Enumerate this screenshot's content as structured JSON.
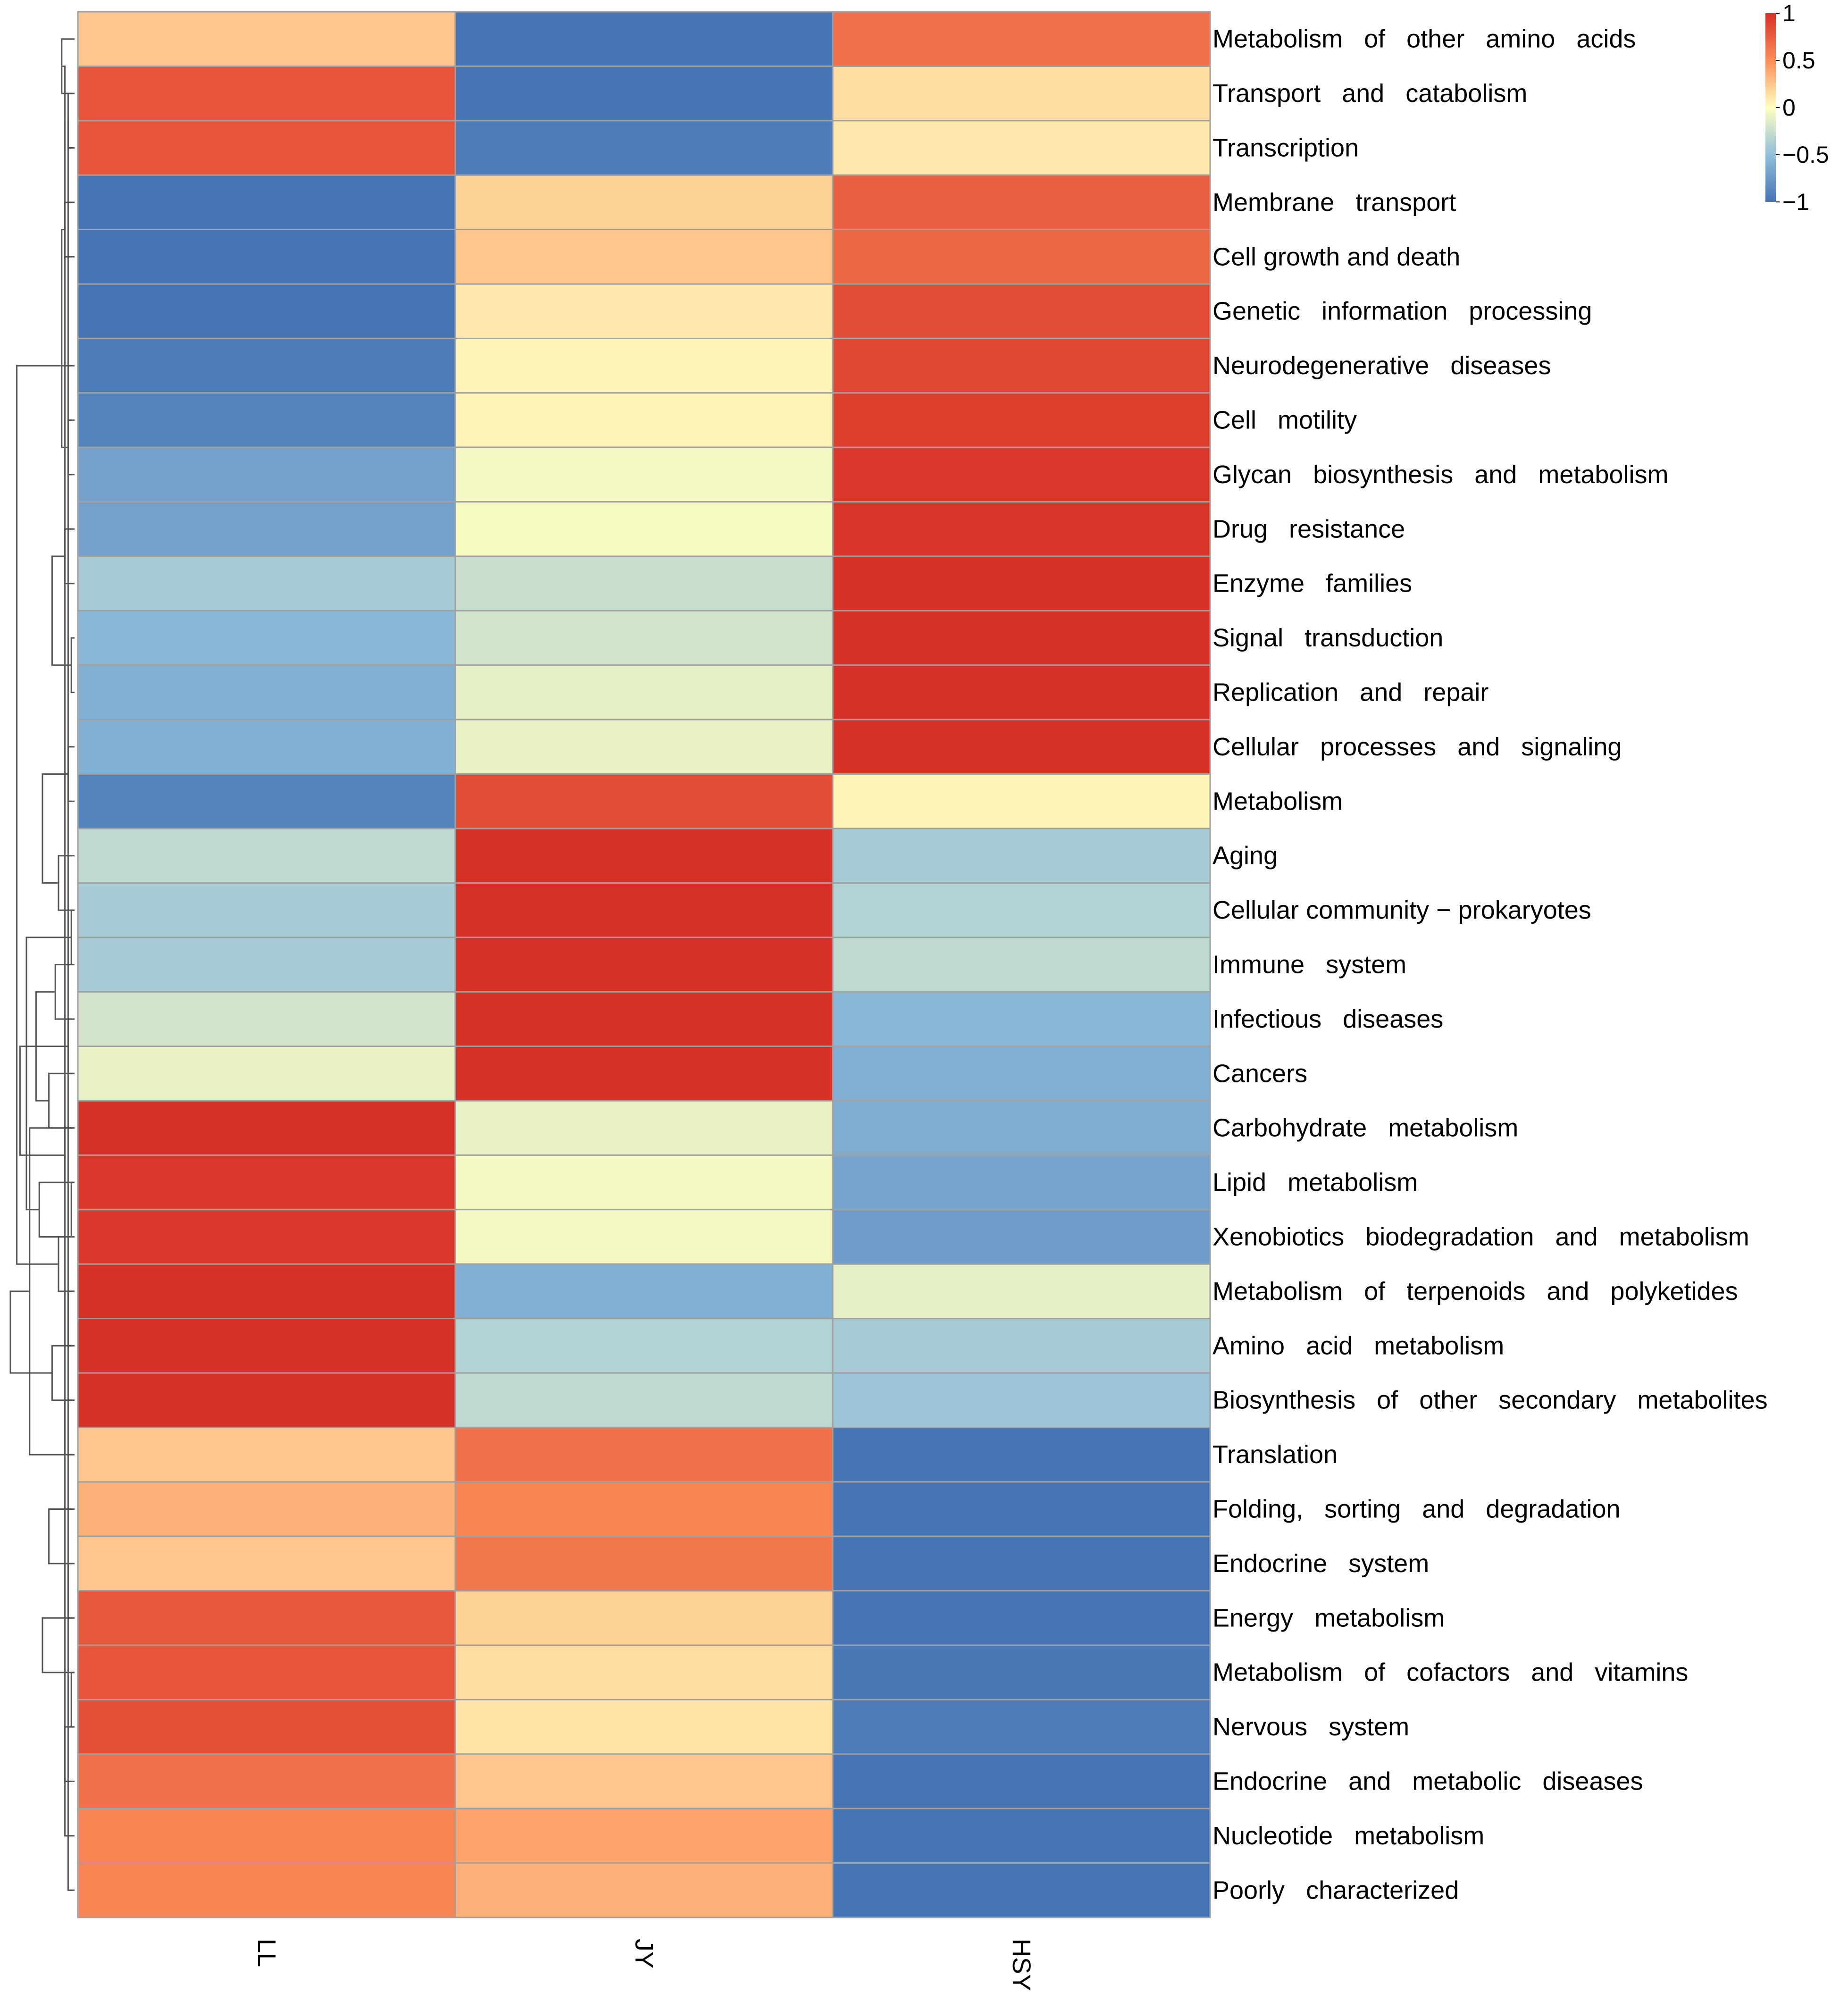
{
  "chart_data": {
    "type": "heatmap",
    "title": "",
    "xlabel": "",
    "ylabel": "",
    "columns": [
      "LL",
      "JY",
      "HSY"
    ],
    "rows": [
      "Metabolism   of   other   amino   acids",
      "Transport   and   catabolism",
      "Transcription",
      "Membrane   transport",
      "Cell growth and death",
      "Genetic   information   processing",
      "Neurodegenerative   diseases",
      "Cell   motility",
      "Glycan   biosynthesis   and   metabolism",
      "Drug   resistance",
      "Enzyme   families",
      "Signal   transduction",
      "Replication   and   repair",
      "Cellular   processes   and   signaling",
      "Metabolism",
      "Aging",
      "Cellular community − prokaryotes",
      "Immune   system",
      "Infectious   diseases",
      "Cancers",
      "Carbohydrate   metabolism",
      "Lipid   metabolism",
      "Xenobiotics   biodegradation   and   metabolism",
      "Metabolism   of   terpenoids   and   polyketides",
      "Amino   acid   metabolism",
      "Biosynthesis   of   other   secondary   metabolites",
      "Translation",
      "Folding,   sorting   and   degradation",
      "Endocrine   system",
      "Energy   metabolism",
      "Metabolism   of   cofactors   and   vitamins",
      "Nervous   system",
      "Endocrine   and   metabolic   diseases",
      "Nucleotide   metabolism",
      "Poorly   characterized"
    ],
    "values": [
      [
        0.25,
        -1.1,
        0.65
      ],
      [
        0.8,
        -1.0,
        0.15
      ],
      [
        0.8,
        -0.95,
        0.1
      ],
      [
        -1.05,
        0.2,
        0.75
      ],
      [
        -1.05,
        0.25,
        0.7
      ],
      [
        -1.0,
        0.1,
        0.85
      ],
      [
        -0.95,
        0.05,
        0.88
      ],
      [
        -0.9,
        0.05,
        0.92
      ],
      [
        -0.7,
        -0.05,
        0.95
      ],
      [
        -0.7,
        -0.03,
        0.97
      ],
      [
        -0.4,
        -0.25,
        1.05
      ],
      [
        -0.55,
        -0.2,
        1.02
      ],
      [
        -0.6,
        -0.12,
        1.0
      ],
      [
        -0.6,
        -0.1,
        1.0
      ],
      [
        -0.9,
        0.85,
        0.05
      ],
      [
        -0.3,
        1.05,
        -0.4
      ],
      [
        -0.4,
        1.05,
        -0.35
      ],
      [
        -0.4,
        1.05,
        -0.3
      ],
      [
        -0.2,
        1.02,
        -0.55
      ],
      [
        -0.1,
        1.0,
        -0.6
      ],
      [
        1.0,
        -0.1,
        -0.62
      ],
      [
        0.95,
        -0.05,
        -0.68
      ],
      [
        0.95,
        -0.05,
        -0.72
      ],
      [
        1.05,
        -0.6,
        -0.12
      ],
      [
        1.05,
        -0.35,
        -0.4
      ],
      [
        1.05,
        -0.3,
        -0.45
      ],
      [
        0.25,
        0.65,
        -1.1
      ],
      [
        0.35,
        0.55,
        -1.1
      ],
      [
        0.25,
        0.62,
        -1.12
      ],
      [
        0.78,
        0.2,
        -1.0
      ],
      [
        0.8,
        0.15,
        -0.98
      ],
      [
        0.82,
        0.12,
        -0.95
      ],
      [
        0.65,
        0.25,
        -1.05
      ],
      [
        0.55,
        0.4,
        -1.05
      ],
      [
        0.55,
        0.35,
        -1.05
      ]
    ],
    "color_scale": {
      "stops": [
        {
          "value": -1,
          "color": "#4575B4"
        },
        {
          "value": -0.5,
          "color": "#91BFDB"
        },
        {
          "value": 0,
          "color": "#FFFFBF"
        },
        {
          "value": 0.5,
          "color": "#FC8D59"
        },
        {
          "value": 1,
          "color": "#D73027"
        }
      ]
    },
    "legend": {
      "placement": "top-right",
      "ticks": [
        {
          "value": 1,
          "label": "1"
        },
        {
          "value": 0.5,
          "label": "0.5"
        },
        {
          "value": 0,
          "label": "0"
        },
        {
          "value": -0.5,
          "label": "−0.5"
        },
        {
          "value": -1,
          "label": "−1"
        }
      ]
    },
    "cell_border_color": "#A0A0A0",
    "dendrogram_color": "#555555"
  }
}
